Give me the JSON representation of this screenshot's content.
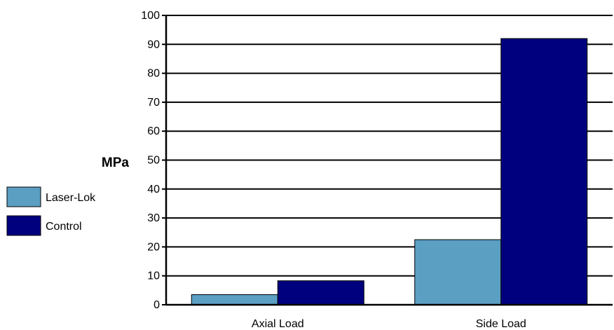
{
  "chart_data": {
    "type": "bar",
    "categories": [
      "Axial Load",
      "Side Load"
    ],
    "series": [
      {
        "name": "Laser-Lok",
        "values": [
          3.5,
          22.5
        ],
        "color": "#5b9fc3"
      },
      {
        "name": "Control",
        "values": [
          8.3,
          92
        ],
        "color": "#00007f"
      }
    ],
    "title": "",
    "xlabel": "",
    "ylabel": "MPa",
    "ylim": [
      0,
      100
    ],
    "yticks": [
      0,
      10,
      20,
      30,
      40,
      50,
      60,
      70,
      80,
      90,
      100
    ],
    "grid": true,
    "legend_position": "left"
  }
}
